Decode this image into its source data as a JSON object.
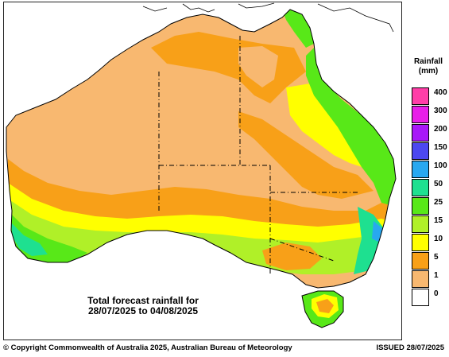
{
  "legend": {
    "title_line1": "Rainfall",
    "title_line2": "(mm)",
    "items": [
      {
        "label": "400",
        "color": "#ff3ea8"
      },
      {
        "label": "300",
        "color": "#e81ee8"
      },
      {
        "label": "200",
        "color": "#a818f8"
      },
      {
        "label": "150",
        "color": "#4c48f0"
      },
      {
        "label": "100",
        "color": "#28a8f0"
      },
      {
        "label": "50",
        "color": "#1ee090"
      },
      {
        "label": "25",
        "color": "#58e818"
      },
      {
        "label": "15",
        "color": "#b0f028"
      },
      {
        "label": "10",
        "color": "#ffff00"
      },
      {
        "label": "5",
        "color": "#f8a018"
      },
      {
        "label": "1",
        "color": "#f8b870"
      },
      {
        "label": "0",
        "color": "#ffffff"
      }
    ]
  },
  "caption": {
    "line1": "Total forecast rainfall for",
    "line2": "28/07/2025 to 04/08/2025"
  },
  "footer": {
    "copyright": "© Copyright Commonwealth of Australia 2025, Australian Bureau of Meteorology",
    "issued": "ISSUED 28/07/2025"
  }
}
